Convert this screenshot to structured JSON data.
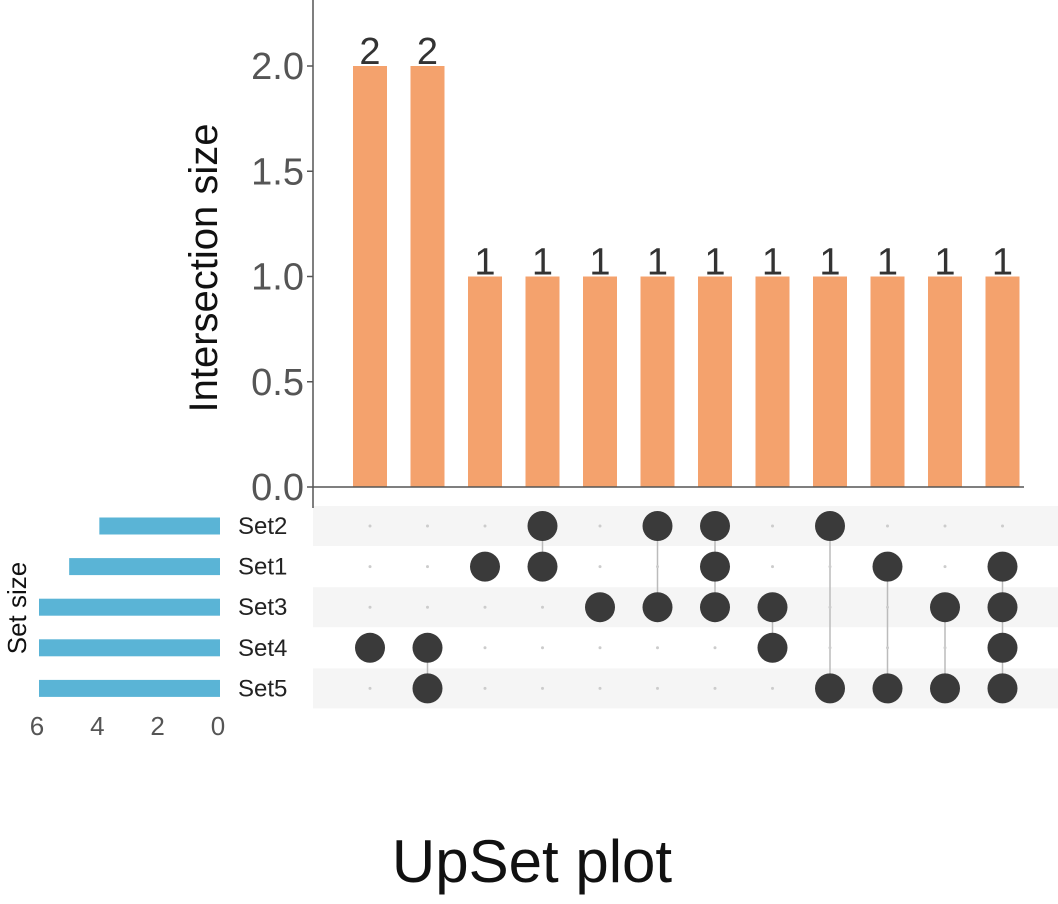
{
  "chart_data": {
    "type": "bar",
    "subtype": "upset",
    "title": "UpSet plot",
    "ylabel": "Intersection size",
    "ylim": [
      0,
      2.3
    ],
    "yticks": [
      0.0,
      0.5,
      1.0,
      1.5,
      2.0
    ],
    "ytick_labels": [
      "0.0",
      "0.5",
      "1.0",
      "1.5",
      "2.0"
    ],
    "sets": [
      "Set2",
      "Set1",
      "Set3",
      "Set4",
      "Set5"
    ],
    "set_size_label": "Set size",
    "set_sizes": [
      4,
      5,
      6,
      6,
      6
    ],
    "set_size_xlim": [
      6,
      0
    ],
    "set_size_ticks": [
      6,
      4,
      2,
      0
    ],
    "set_size_tick_labels": [
      "6",
      "4",
      "2",
      "0"
    ],
    "intersections": [
      {
        "sets": [
          "Set4"
        ],
        "value": 2
      },
      {
        "sets": [
          "Set4",
          "Set5"
        ],
        "value": 2
      },
      {
        "sets": [
          "Set1"
        ],
        "value": 1
      },
      {
        "sets": [
          "Set2",
          "Set1"
        ],
        "value": 1
      },
      {
        "sets": [
          "Set3"
        ],
        "value": 1
      },
      {
        "sets": [
          "Set2",
          "Set3"
        ],
        "value": 1
      },
      {
        "sets": [
          "Set2",
          "Set1",
          "Set3"
        ],
        "value": 1
      },
      {
        "sets": [
          "Set3",
          "Set4"
        ],
        "value": 1
      },
      {
        "sets": [
          "Set2",
          "Set5"
        ],
        "value": 1
      },
      {
        "sets": [
          "Set1",
          "Set5"
        ],
        "value": 1
      },
      {
        "sets": [
          "Set3",
          "Set5"
        ],
        "value": 1
      },
      {
        "sets": [
          "Set1",
          "Set3",
          "Set4",
          "Set5"
        ],
        "value": 1
      }
    ],
    "bar_labels": [
      "2",
      "2",
      "1",
      "1",
      "1",
      "1",
      "1",
      "1",
      "1",
      "1",
      "1",
      "1"
    ],
    "colors": {
      "intersection_bar": "#f4a26d",
      "set_bar": "#5ab4d6",
      "dot_active": "#3a3a3a",
      "dot_inactive": "#cccccc",
      "stripe": "#f5f5f5",
      "axis": "#555555"
    },
    "grid": false
  }
}
